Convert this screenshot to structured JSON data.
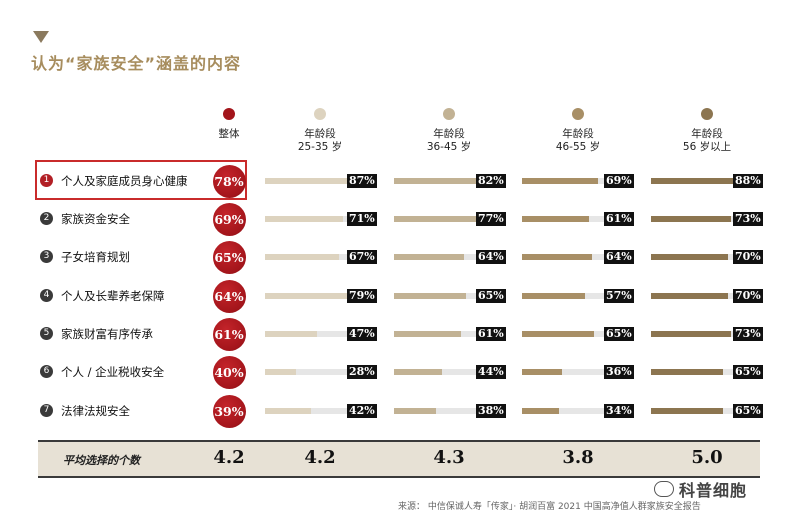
{
  "title": "认为“家族安全”涵盖的内容",
  "colors": {
    "overall": "#a3151b",
    "g25_35": "#ddd3bf",
    "g36_45": "#c2b294",
    "g46_55": "#a88f66",
    "g56plus": "#8c7550",
    "accent": "#a78d5e"
  },
  "columns": [
    {
      "line1": "整体",
      "line2": ""
    },
    {
      "line1": "年龄段",
      "line2": "25-35 岁"
    },
    {
      "line1": "年龄段",
      "line2": "36-45 岁"
    },
    {
      "line1": "年龄段",
      "line2": "46-55 岁"
    },
    {
      "line1": "年龄段",
      "line2": "56 岁以上"
    }
  ],
  "rows": [
    {
      "num": "1",
      "label": "个人及家庭成员身心健康"
    },
    {
      "num": "2",
      "label": "家族资金安全"
    },
    {
      "num": "3",
      "label": "子女培育规划"
    },
    {
      "num": "4",
      "label": "个人及长辈养老保障"
    },
    {
      "num": "5",
      "label": "家族财富有序传承"
    },
    {
      "num": "6",
      "label": "个人 / 企业税收安全"
    },
    {
      "num": "7",
      "label": "法律法规安全"
    }
  ],
  "chart_data": {
    "type": "bar",
    "title": "认为“家族安全”涵盖的内容",
    "categories": [
      "个人及家庭成员身心健康",
      "家族资金安全",
      "子女培育规划",
      "个人及长辈养老保障",
      "家族财富有序传承",
      "个人 / 企业税收安全",
      "法律法规安全"
    ],
    "unit": "%",
    "series": [
      {
        "name": "整体",
        "values": [
          78,
          69,
          65,
          64,
          61,
          40,
          39
        ]
      },
      {
        "name": "年龄段 25-35 岁",
        "values": [
          87,
          71,
          67,
          79,
          47,
          28,
          42
        ]
      },
      {
        "name": "年龄段 36-45 岁",
        "values": [
          82,
          77,
          64,
          65,
          61,
          44,
          38
        ]
      },
      {
        "name": "年龄段 46-55 岁",
        "values": [
          69,
          61,
          64,
          57,
          65,
          36,
          34
        ]
      },
      {
        "name": "年龄段 56 岁以上",
        "values": [
          88,
          73,
          70,
          70,
          73,
          65,
          65
        ]
      }
    ],
    "ylim": [
      0,
      100
    ]
  },
  "average": {
    "label": "平均选择的个数",
    "values": [
      "4.2",
      "4.2",
      "4.3",
      "3.8",
      "5.0"
    ]
  },
  "source": "来源：  中信保诚人寿「传家」· 胡润百富 2021 中国高净值人群家族安全报告",
  "watermark": "科普细胞"
}
